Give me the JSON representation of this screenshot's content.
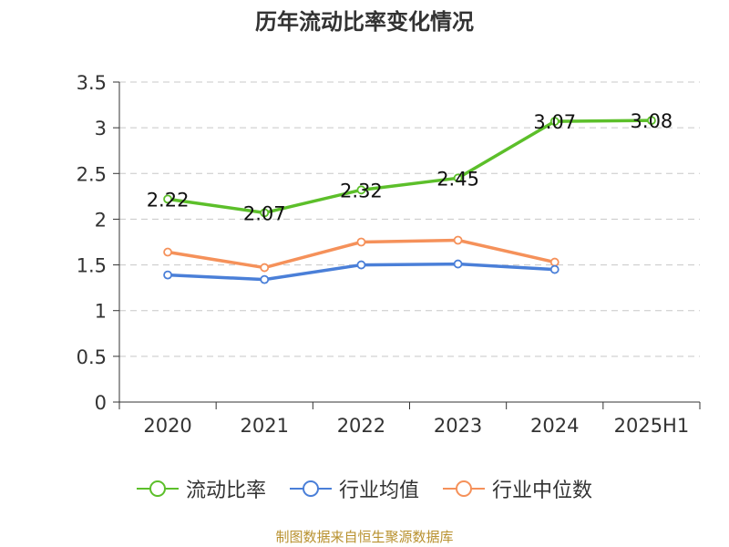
{
  "chart_data": {
    "type": "line",
    "title": "历年流动比率变化情况",
    "categories": [
      "2020",
      "2021",
      "2022",
      "2023",
      "2024",
      "2025H1"
    ],
    "ylim": [
      0,
      3.5
    ],
    "y_ticks": [
      "0",
      "0.5",
      "1",
      "1.5",
      "2",
      "2.5",
      "3",
      "3.5"
    ],
    "grid": true,
    "legend_position": "bottom",
    "series": [
      {
        "name": "流动比率",
        "color": "#5cbf2a",
        "values": [
          2.22,
          2.07,
          2.32,
          2.45,
          3.07,
          3.08
        ],
        "labels": [
          "2.22",
          "2.07",
          "2.32",
          "2.45",
          "3.07",
          "3.08"
        ]
      },
      {
        "name": "行业均值",
        "color": "#4a7fd8",
        "values": [
          1.39,
          1.34,
          1.5,
          1.51,
          1.45,
          null
        ]
      },
      {
        "name": "行业中位数",
        "color": "#f5915a",
        "values": [
          1.64,
          1.47,
          1.75,
          1.77,
          1.53,
          null
        ]
      }
    ]
  },
  "source_note": "制图数据来自恒生聚源数据库"
}
